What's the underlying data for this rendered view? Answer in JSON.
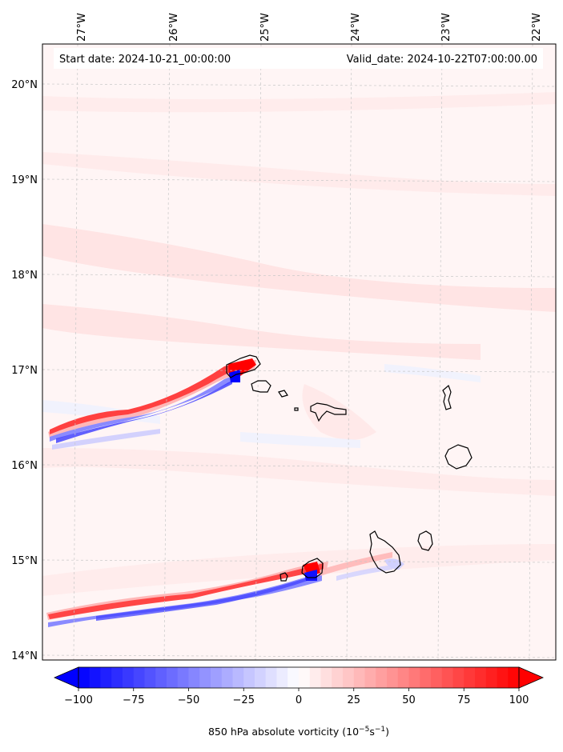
{
  "header": {
    "start_date": "Start date: 2024-10-21_00:00:00",
    "valid_date": "Valid_date: 2024-10-22T07:00:00.00"
  },
  "map": {
    "lon_labels": [
      "27°W",
      "26°W",
      "25°W",
      "24°W",
      "23°W",
      "22°W"
    ],
    "lat_labels": [
      "20°N",
      "19°N",
      "18°N",
      "17°N",
      "16°N",
      "15°N",
      "14°N"
    ],
    "lon_values": [
      -27,
      -26,
      -25,
      -24,
      -23,
      -22
    ],
    "lat_values": [
      20,
      19,
      18,
      17,
      16,
      15,
      14
    ],
    "gridlines": "dashed light gray",
    "coastline_color": "#000000",
    "background_color": "#fff5f5"
  },
  "colorbar": {
    "ticks": [
      "−100",
      "−75",
      "−50",
      "−25",
      "0",
      "25",
      "50",
      "75",
      "100"
    ],
    "tick_values": [
      -100,
      -75,
      -50,
      -25,
      0,
      25,
      50,
      75,
      100
    ],
    "min": -100,
    "max": 100,
    "extend": "both",
    "colormap": "bwr",
    "label_main": "850 hPa absolute vorticity (10",
    "label_exp1": "−5",
    "label_mid": "s",
    "label_exp2": "−1",
    "label_end": ")"
  }
}
